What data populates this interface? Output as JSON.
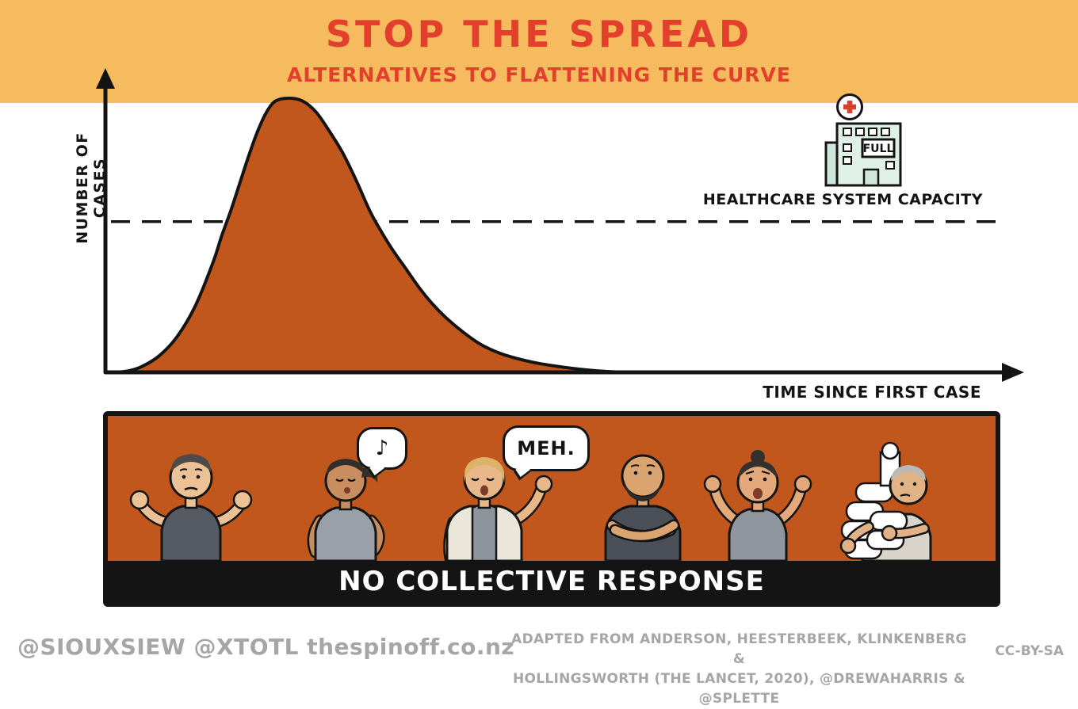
{
  "banner": {
    "title": "STOP THE SPREAD",
    "subtitle": "ALTERNATIVES TO FLATTENING THE CURVE"
  },
  "chart": {
    "y_axis_label": "NUMBER OF CASES",
    "x_axis_label": "TIME SINCE FIRST CASE",
    "capacity_label": "HEALTHCARE SYSTEM CAPACITY",
    "hospital_sign": "FULL"
  },
  "panel": {
    "caption": "NO COLLECTIVE RESPONSE",
    "speech_bubbles": [
      {
        "speaker": "whistling-woman",
        "text": "♪"
      },
      {
        "speaker": "meh-woman",
        "text": "MEH."
      }
    ],
    "figures": [
      "man shrugging",
      "woman whistling",
      "woman saying meh",
      "man with crossed arms",
      "woman with hands raised",
      "man hoarding toilet paper"
    ]
  },
  "footer": {
    "left": "@SIOUXSIEW @XTOTL thespinoff.co.nz",
    "credit_line1": "ADAPTED FROM ANDERSON, HEESTERBEEK, KLINKENBERG &",
    "credit_line2": "HOLLINGSWORTH (THE LANCET, 2020), @DREWAHARRIS & @SPLETTE",
    "license": "CC-BY-SA"
  },
  "colors": {
    "banner": "#f6bb5e",
    "title_red": "#e2402c",
    "curve_orange": "#c1571d",
    "panel_orange": "#c1571d",
    "ink": "#141414",
    "footer_gray": "#a6a6a6",
    "hospital_mint": "#dff0e7",
    "cross_red": "#d6402c"
  },
  "chart_data": {
    "type": "area",
    "title": "STOP THE SPREAD — ALTERNATIVES TO FLATTENING THE CURVE",
    "xlabel": "TIME SINCE FIRST CASE",
    "ylabel": "NUMBER OF CASES",
    "x_range": [
      0,
      100
    ],
    "y_range": [
      0,
      110
    ],
    "grid": false,
    "legend": false,
    "series": [
      {
        "name": "Cases with no collective response",
        "fill": "#c1571d",
        "points": [
          [
            1,
            0
          ],
          [
            2.5,
            0.5
          ],
          [
            4,
            2
          ],
          [
            6,
            6
          ],
          [
            8,
            13
          ],
          [
            10,
            24
          ],
          [
            12,
            40
          ],
          [
            13,
            50
          ],
          [
            14,
            59
          ],
          [
            15,
            69
          ],
          [
            16,
            79
          ],
          [
            17,
            88
          ],
          [
            18,
            95
          ],
          [
            19,
            99
          ],
          [
            20.5,
            100
          ],
          [
            22,
            99
          ],
          [
            23.5,
            95
          ],
          [
            25,
            88
          ],
          [
            26.5,
            80
          ],
          [
            28,
            70
          ],
          [
            29.5,
            59
          ],
          [
            30.5,
            53
          ],
          [
            32,
            45
          ],
          [
            33.5,
            38
          ],
          [
            35,
            31
          ],
          [
            36.5,
            25
          ],
          [
            38,
            20
          ],
          [
            40,
            14.5
          ],
          [
            42,
            10
          ],
          [
            44,
            7
          ],
          [
            46,
            5
          ],
          [
            48,
            3.5
          ],
          [
            50,
            2.4
          ],
          [
            52,
            1.5
          ],
          [
            54,
            0.8
          ],
          [
            56,
            0.3
          ],
          [
            58,
            0
          ]
        ]
      }
    ],
    "reference_line": {
      "label": "HEALTHCARE SYSTEM CAPACITY",
      "y": 55,
      "style": "dashed"
    },
    "annotations": [
      "NO COLLECTIVE RESPONSE",
      "FULL"
    ]
  }
}
